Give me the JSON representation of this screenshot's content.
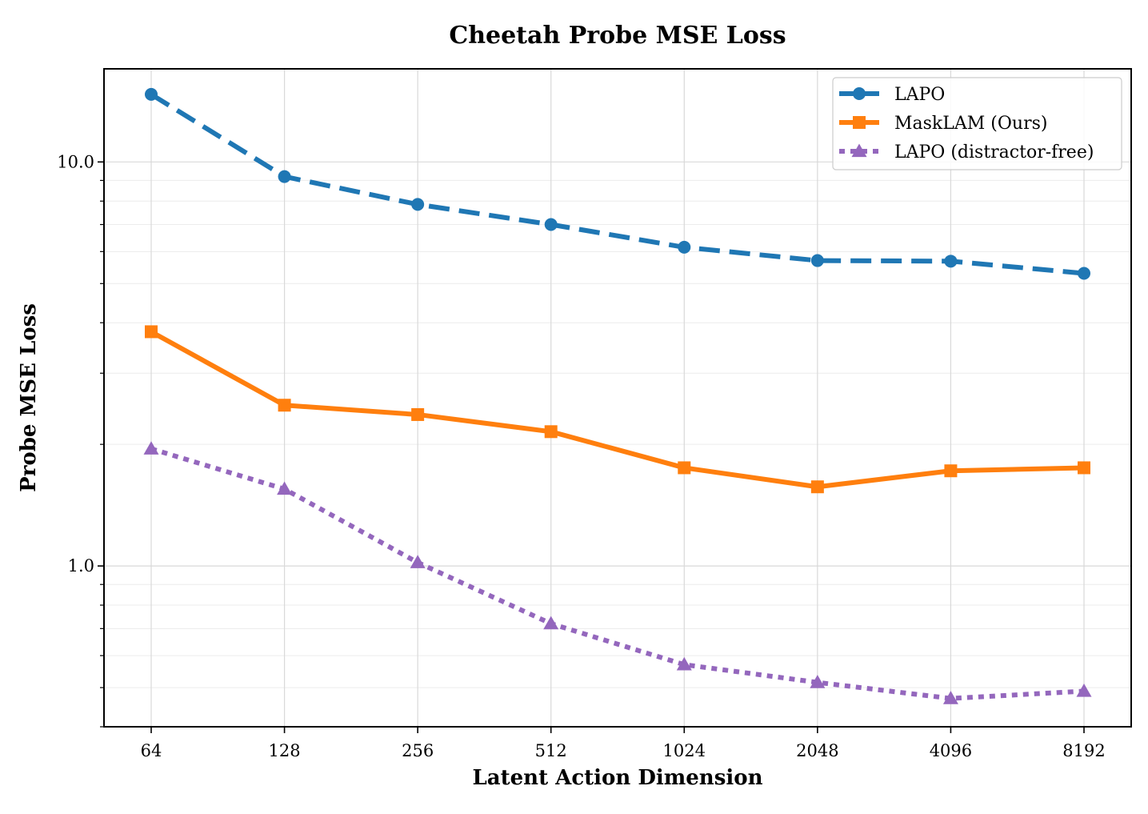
{
  "chart_data": {
    "type": "line",
    "title": "Cheetah Probe MSE Loss",
    "xlabel": "Latent Action Dimension",
    "ylabel": "Probe MSE Loss",
    "categories": [
      "64",
      "128",
      "256",
      "512",
      "1024",
      "2048",
      "4096",
      "8192"
    ],
    "yscale": "log",
    "ylim": [
      0.4,
      17
    ],
    "yticks": [
      1.0,
      10.0
    ],
    "ytick_labels": [
      "1.0",
      "10.0"
    ],
    "grid": true,
    "legend_position": "top-right",
    "series": [
      {
        "name": "LAPO",
        "values": [
          14.7,
          9.2,
          7.85,
          7.0,
          6.15,
          5.7,
          5.68,
          5.3
        ],
        "color": "#1f77b4",
        "line_style": "dashed",
        "marker": "circle"
      },
      {
        "name": "MaskLAM (Ours)",
        "values": [
          3.8,
          2.5,
          2.37,
          2.15,
          1.75,
          1.57,
          1.72,
          1.75
        ],
        "color": "#ff7f0e",
        "line_style": "solid",
        "marker": "square"
      },
      {
        "name": "LAPO (distractor-free)",
        "values": [
          1.95,
          1.55,
          1.02,
          0.72,
          0.57,
          0.515,
          0.47,
          0.49
        ],
        "color": "#9467bd",
        "line_style": "dotted",
        "marker": "triangle"
      }
    ]
  }
}
